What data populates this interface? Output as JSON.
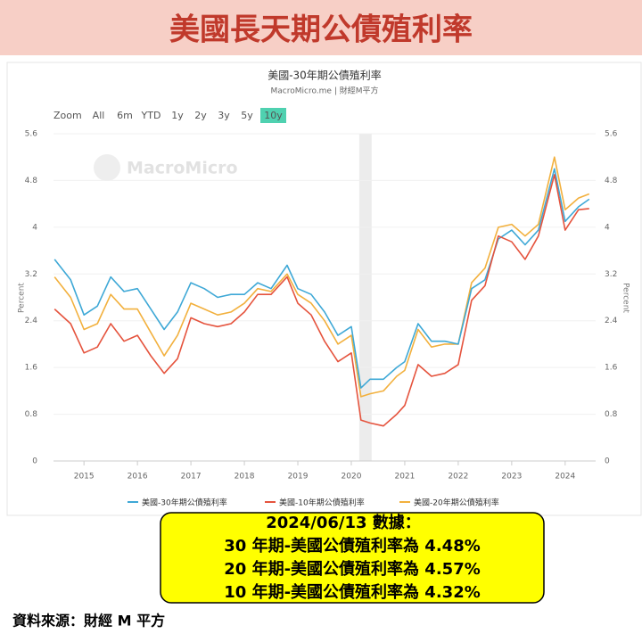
{
  "header": {
    "title": "美國長天期公債殖利率"
  },
  "zoom": {
    "label": "Zoom",
    "options": [
      "All",
      "6m",
      "YTD",
      "1y",
      "2y",
      "3y",
      "5y",
      "10y"
    ],
    "selected": "10y"
  },
  "watermark": "MacroMicro",
  "chart_data": {
    "type": "line",
    "title": "美國-30年期公債殖利率",
    "subtitle": "MacroMicro.me | 財經M平方",
    "ylabel": "Percent",
    "y2label": "Percent",
    "x": [
      2014.45,
      2014.75,
      2015.0,
      2015.25,
      2015.5,
      2015.75,
      2016.0,
      2016.25,
      2016.5,
      2016.75,
      2017.0,
      2017.25,
      2017.5,
      2017.75,
      2018.0,
      2018.25,
      2018.5,
      2018.8,
      2019.0,
      2019.25,
      2019.5,
      2019.75,
      2020.0,
      2020.18,
      2020.35,
      2020.6,
      2020.85,
      2021.0,
      2021.25,
      2021.5,
      2021.75,
      2022.0,
      2022.25,
      2022.5,
      2022.75,
      2023.0,
      2023.25,
      2023.5,
      2023.8,
      2024.0,
      2024.25,
      2024.45
    ],
    "series": [
      {
        "name": "美國-30年期公債殖利率",
        "color": "#3ea8d6",
        "values": [
          3.45,
          3.1,
          2.5,
          2.65,
          3.15,
          2.9,
          2.95,
          2.6,
          2.25,
          2.55,
          3.05,
          2.95,
          2.8,
          2.85,
          2.85,
          3.05,
          2.95,
          3.35,
          2.95,
          2.85,
          2.55,
          2.15,
          2.3,
          1.25,
          1.4,
          1.4,
          1.6,
          1.7,
          2.35,
          2.05,
          2.05,
          2.0,
          2.95,
          3.1,
          3.8,
          3.95,
          3.7,
          3.95,
          5.0,
          4.1,
          4.35,
          4.48
        ]
      },
      {
        "name": "美國-10年期公債殖利率",
        "color": "#e5533d",
        "values": [
          2.6,
          2.35,
          1.85,
          1.95,
          2.35,
          2.05,
          2.15,
          1.8,
          1.5,
          1.75,
          2.45,
          2.35,
          2.3,
          2.35,
          2.55,
          2.85,
          2.85,
          3.15,
          2.7,
          2.5,
          2.05,
          1.7,
          1.85,
          0.7,
          0.65,
          0.6,
          0.8,
          0.95,
          1.65,
          1.45,
          1.5,
          1.65,
          2.75,
          3.0,
          3.85,
          3.75,
          3.45,
          3.85,
          4.9,
          3.95,
          4.3,
          4.32
        ]
      },
      {
        "name": "美國-20年期公債殖利率",
        "color": "#f2b03d",
        "values": [
          3.15,
          2.8,
          2.25,
          2.35,
          2.85,
          2.6,
          2.6,
          2.2,
          1.8,
          2.15,
          2.7,
          2.6,
          2.5,
          2.55,
          2.7,
          2.95,
          2.9,
          3.2,
          2.85,
          2.7,
          2.4,
          2.0,
          2.15,
          1.1,
          1.15,
          1.2,
          1.45,
          1.55,
          2.25,
          1.95,
          2.0,
          2.0,
          3.05,
          3.3,
          4.0,
          4.05,
          3.85,
          4.05,
          5.2,
          4.3,
          4.5,
          4.57
        ]
      }
    ],
    "shaded_x": [
      2020.15,
      2020.38
    ],
    "xlim": [
      2014.43,
      2024.57
    ],
    "xticks": [
      2015,
      2016,
      2017,
      2018,
      2019,
      2020,
      2021,
      2022,
      2023,
      2024
    ],
    "ylim": [
      0,
      5.6
    ],
    "yticks": [
      0,
      0.8,
      1.6,
      2.4,
      3.2,
      4,
      4.8,
      5.6
    ],
    "y2lim": [
      0,
      5.6
    ],
    "y2ticks": [
      0,
      0.8,
      1.6,
      2.4,
      3.2,
      4,
      4.8,
      5.6
    ],
    "grid": true
  },
  "callout": {
    "lines": [
      "2024/06/13 數據：",
      "30 年期-美國公債殖利率為 4.48%",
      "20 年期-美國公債殖利率為 4.57%",
      "10 年期-美國公債殖利率為 4.32%"
    ]
  },
  "source": "資料來源：財經 M 平方"
}
